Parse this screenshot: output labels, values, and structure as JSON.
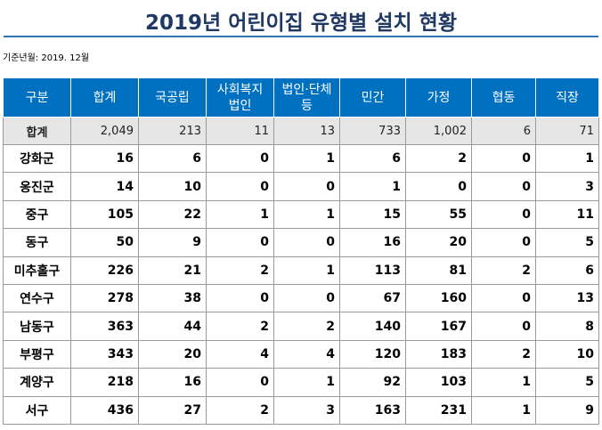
{
  "title": "2019년 어린이집 유형별 설치 현황",
  "reference_date": "기준년월: 2019. 12월",
  "columns": [
    "구분",
    "합계",
    "국공립",
    "사회복지\n법인",
    "법인·단체\n등",
    "민간",
    "가정",
    "협동",
    "직장"
  ],
  "total_row": [
    "합계",
    "2,049",
    "213",
    "11",
    "13",
    "733",
    "1,002",
    "6",
    "71"
  ],
  "rows": [
    [
      "강화군",
      "16",
      "6",
      "0",
      "1",
      "6",
      "2",
      "0",
      "1"
    ],
    [
      "옹진군",
      "14",
      "10",
      "0",
      "0",
      "1",
      "0",
      "0",
      "3"
    ],
    [
      "중구",
      "105",
      "22",
      "1",
      "1",
      "15",
      "55",
      "0",
      "11"
    ],
    [
      "동구",
      "50",
      "9",
      "0",
      "0",
      "16",
      "20",
      "0",
      "5"
    ],
    [
      "미추홀구",
      "226",
      "21",
      "2",
      "1",
      "113",
      "81",
      "2",
      "6"
    ],
    [
      "연수구",
      "278",
      "38",
      "0",
      "0",
      "67",
      "160",
      "0",
      "13"
    ],
    [
      "남동구",
      "363",
      "44",
      "2",
      "2",
      "140",
      "167",
      "0",
      "8"
    ],
    [
      "부평구",
      "343",
      "20",
      "4",
      "4",
      "120",
      "183",
      "2",
      "10"
    ],
    [
      "계양구",
      "218",
      "16",
      "0",
      "1",
      "92",
      "103",
      "1",
      "5"
    ],
    [
      "서구",
      "436",
      "27",
      "2",
      "3",
      "163",
      "231",
      "1",
      "9"
    ]
  ],
  "colors": {
    "header_bg": "#0070c0",
    "title": "#1f3864",
    "total_bg": "#e7e6e6",
    "rule": "#2e75b6"
  }
}
